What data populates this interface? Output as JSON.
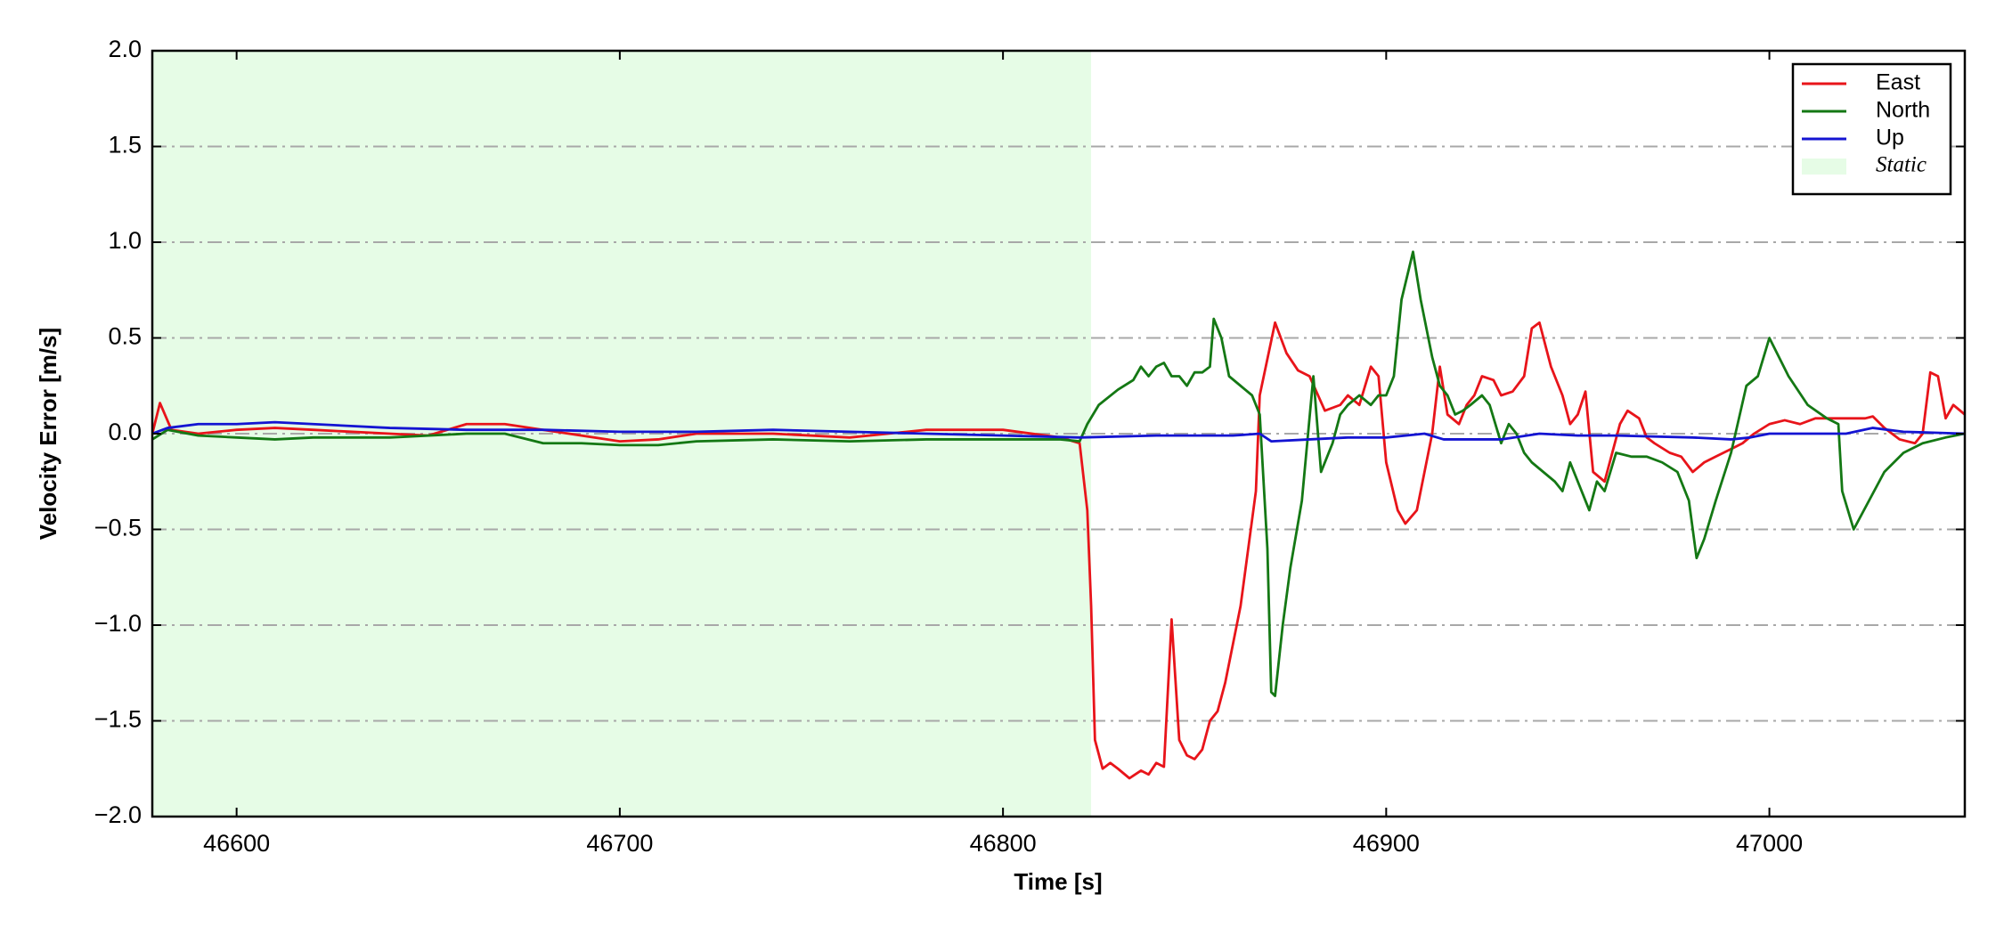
{
  "chart_data": {
    "type": "line",
    "x_label": "Time [s]",
    "y_label": "Velocity Error [m/s]",
    "xlim": [
      46578,
      47051
    ],
    "ylim": [
      -2.0,
      2.0
    ],
    "xticks": [
      46600,
      46700,
      46800,
      46900,
      47000
    ],
    "yticks": [
      {
        "value": -2.0,
        "label": "−2.0"
      },
      {
        "value": -1.5,
        "label": "−1.5"
      },
      {
        "value": -1.0,
        "label": "−1.0"
      },
      {
        "value": -0.5,
        "label": "−0.5"
      },
      {
        "value": 0.0,
        "label": "0.0"
      },
      {
        "value": 0.5,
        "label": "0.5"
      },
      {
        "value": 1.0,
        "label": "1.0"
      },
      {
        "value": 1.5,
        "label": "1.5"
      },
      {
        "value": 2.0,
        "label": "2.0"
      }
    ],
    "grid": true,
    "legend_position": "upper right",
    "shaded_regions": [
      {
        "name": "Static",
        "xstart": 46578,
        "xend": 46823,
        "color": "#e6fce6"
      }
    ],
    "series": [
      {
        "name": "East",
        "color": "#e8141a",
        "x": [
          46578,
          46580,
          46583,
          46590,
          46600,
          46610,
          46620,
          46640,
          46650,
          46660,
          46670,
          46680,
          46700,
          46710,
          46720,
          46740,
          46760,
          46780,
          46800,
          46815,
          46820,
          46822,
          46823,
          46824,
          46826,
          46828,
          46830,
          46833,
          46836,
          46838,
          46840,
          46842,
          46844,
          46846,
          46848,
          46850,
          46852,
          46854,
          46856,
          46858,
          46860,
          46862,
          46864,
          46866,
          46867,
          46871,
          46874,
          46877,
          46880,
          46884,
          46888,
          46890,
          46893,
          46896,
          46898,
          46900,
          46903,
          46905,
          46908,
          46912,
          46914,
          46916,
          46919,
          46921,
          46923,
          46925,
          46928,
          46930,
          46933,
          46936,
          46938,
          46940,
          46943,
          46946,
          46948,
          46950,
          46952,
          46954,
          46957,
          46959,
          46961,
          46963,
          46966,
          46968,
          46970,
          46974,
          46977,
          46980,
          46983,
          46986,
          46990,
          46993,
          46996,
          47000,
          47004,
          47008,
          47012,
          47018,
          47025,
          47027,
          47030,
          47034,
          47038,
          47040,
          47042,
          47044,
          47046,
          47048,
          47051
        ],
        "values": [
          0.0,
          0.16,
          0.02,
          0.0,
          0.02,
          0.03,
          0.02,
          0.0,
          -0.01,
          0.05,
          0.05,
          0.02,
          -0.04,
          -0.03,
          0.0,
          0.0,
          -0.02,
          0.02,
          0.02,
          -0.02,
          -0.05,
          -0.4,
          -0.9,
          -1.6,
          -1.75,
          -1.72,
          -1.75,
          -1.8,
          -1.76,
          -1.78,
          -1.72,
          -1.74,
          -0.97,
          -1.6,
          -1.68,
          -1.7,
          -1.65,
          -1.5,
          -1.45,
          -1.3,
          -1.1,
          -0.9,
          -0.6,
          -0.3,
          0.2,
          0.58,
          0.42,
          0.33,
          0.3,
          0.12,
          0.15,
          0.2,
          0.15,
          0.35,
          0.3,
          -0.15,
          -0.4,
          -0.47,
          -0.4,
          0.0,
          0.35,
          0.1,
          0.05,
          0.15,
          0.2,
          0.3,
          0.28,
          0.2,
          0.22,
          0.3,
          0.55,
          0.58,
          0.35,
          0.2,
          0.05,
          0.1,
          0.22,
          -0.2,
          -0.25,
          -0.1,
          0.05,
          0.12,
          0.08,
          -0.02,
          -0.05,
          -0.1,
          -0.12,
          -0.2,
          -0.15,
          -0.12,
          -0.08,
          -0.05,
          0.0,
          0.05,
          0.07,
          0.05,
          0.08,
          0.08,
          0.08,
          0.09,
          0.03,
          -0.03,
          -0.05,
          0.0,
          0.32,
          0.3,
          0.08,
          0.15,
          0.1
        ]
      },
      {
        "name": "North",
        "color": "#147814",
        "x": [
          46578,
          46582,
          46590,
          46600,
          46610,
          46620,
          46640,
          46660,
          46670,
          46680,
          46690,
          46700,
          46710,
          46720,
          46740,
          46760,
          46780,
          46800,
          46815,
          46820,
          46822,
          46825,
          46830,
          46834,
          46836,
          46838,
          46840,
          46842,
          46844,
          46846,
          46848,
          46850,
          46852,
          46854,
          46855,
          46857,
          46859,
          46862,
          46865,
          46867,
          46869,
          46870,
          46871,
          46873,
          46875,
          46878,
          46881,
          46883,
          46886,
          46888,
          46890,
          46893,
          46896,
          46898,
          46900,
          46902,
          46904,
          46907,
          46909,
          46912,
          46914,
          46916,
          46918,
          46920,
          46922,
          46925,
          46927,
          46930,
          46932,
          46934,
          46936,
          46938,
          46941,
          46944,
          46946,
          46948,
          46951,
          46953,
          46955,
          46957,
          46960,
          46964,
          46968,
          46972,
          46976,
          46979,
          46981,
          46983,
          46986,
          46990,
          46994,
          46997,
          47000,
          47005,
          47010,
          47015,
          47018,
          47019,
          47022,
          47026,
          47030,
          47035,
          47040,
          47046,
          47051
        ],
        "values": [
          -0.03,
          0.02,
          -0.01,
          -0.02,
          -0.03,
          -0.02,
          -0.02,
          0.0,
          0.0,
          -0.05,
          -0.05,
          -0.06,
          -0.06,
          -0.04,
          -0.03,
          -0.04,
          -0.03,
          -0.03,
          -0.03,
          -0.04,
          0.05,
          0.15,
          0.23,
          0.28,
          0.35,
          0.3,
          0.35,
          0.37,
          0.3,
          0.3,
          0.25,
          0.32,
          0.32,
          0.35,
          0.6,
          0.5,
          0.3,
          0.25,
          0.2,
          0.1,
          -0.6,
          -1.35,
          -1.37,
          -1.0,
          -0.7,
          -0.35,
          0.3,
          -0.2,
          -0.05,
          0.1,
          0.15,
          0.2,
          0.15,
          0.2,
          0.2,
          0.3,
          0.7,
          0.95,
          0.7,
          0.4,
          0.25,
          0.2,
          0.1,
          0.12,
          0.15,
          0.2,
          0.15,
          -0.05,
          0.05,
          0.0,
          -0.1,
          -0.15,
          -0.2,
          -0.25,
          -0.3,
          -0.15,
          -0.3,
          -0.4,
          -0.25,
          -0.3,
          -0.1,
          -0.12,
          -0.12,
          -0.15,
          -0.2,
          -0.35,
          -0.65,
          -0.55,
          -0.35,
          -0.1,
          0.25,
          0.3,
          0.5,
          0.3,
          0.15,
          0.08,
          0.05,
          -0.3,
          -0.5,
          -0.35,
          -0.2,
          -0.1,
          -0.05,
          -0.02,
          0.0
        ]
      },
      {
        "name": "Up",
        "color": "#1414d2",
        "x": [
          46578,
          46582,
          46590,
          46600,
          46610,
          46620,
          46640,
          46660,
          46680,
          46700,
          46720,
          46740,
          46760,
          46780,
          46800,
          46820,
          46840,
          46860,
          46867,
          46870,
          46880,
          46890,
          46900,
          46910,
          46915,
          46930,
          46940,
          46950,
          46960,
          46980,
          46990,
          46995,
          47000,
          47010,
          47020,
          47027,
          47035,
          47051
        ],
        "values": [
          0.0,
          0.03,
          0.05,
          0.05,
          0.06,
          0.05,
          0.03,
          0.02,
          0.02,
          0.01,
          0.01,
          0.02,
          0.01,
          0.0,
          -0.01,
          -0.02,
          -0.01,
          -0.01,
          0.0,
          -0.04,
          -0.03,
          -0.02,
          -0.02,
          0.0,
          -0.03,
          -0.03,
          0.0,
          -0.01,
          -0.01,
          -0.02,
          -0.03,
          -0.02,
          0.0,
          0.0,
          0.0,
          0.03,
          0.01,
          0.0
        ]
      }
    ]
  }
}
